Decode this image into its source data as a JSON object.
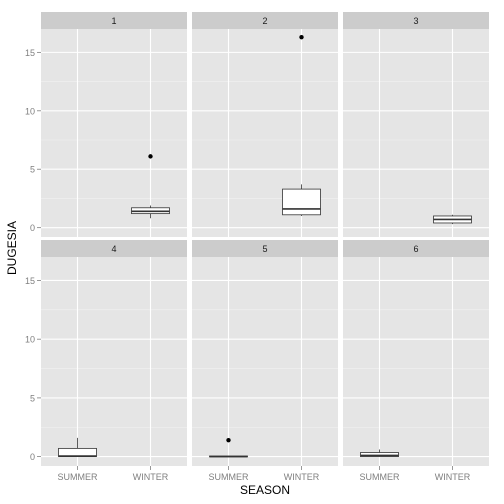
{
  "chart_data": {
    "type": "boxplot",
    "xlabel": "SEASON",
    "ylabel": "DUGESIA",
    "categories": [
      "SUMMER",
      "WINTER"
    ],
    "y_ticks": [
      0,
      5,
      10,
      15
    ],
    "ylim": [
      -0.8,
      17.0
    ],
    "grid": true,
    "facets": [
      {
        "label": "1",
        "boxes": [
          {
            "category": "WINTER",
            "whisker_low": 0.8,
            "q1": 1.2,
            "median": 1.4,
            "q3": 1.7,
            "whisker_high": 1.9,
            "outliers": [
              6.1
            ]
          }
        ]
      },
      {
        "label": "2",
        "boxes": [
          {
            "category": "WINTER",
            "whisker_low": 1.0,
            "q1": 1.1,
            "median": 1.6,
            "q3": 3.3,
            "whisker_high": 3.7,
            "outliers": [
              16.3
            ]
          }
        ]
      },
      {
        "label": "3",
        "boxes": [
          {
            "category": "WINTER",
            "whisker_low": 0.3,
            "q1": 0.4,
            "median": 0.7,
            "q3": 1.0,
            "whisker_high": 1.1,
            "outliers": []
          }
        ]
      },
      {
        "label": "4",
        "boxes": [
          {
            "category": "SUMMER",
            "whisker_low": 0.0,
            "q1": 0.0,
            "median": 0.05,
            "q3": 0.7,
            "whisker_high": 1.6,
            "outliers": []
          }
        ]
      },
      {
        "label": "5",
        "boxes": [
          {
            "category": "SUMMER",
            "whisker_low": 0.0,
            "q1": 0.0,
            "median": 0.0,
            "q3": 0.05,
            "whisker_high": 0.05,
            "outliers": [
              1.4
            ]
          }
        ]
      },
      {
        "label": "6",
        "boxes": [
          {
            "category": "SUMMER",
            "whisker_low": 0.0,
            "q1": 0.0,
            "median": 0.1,
            "q3": 0.35,
            "whisker_high": 0.6,
            "outliers": []
          }
        ]
      }
    ]
  },
  "colors": {
    "panel_bg": "#e5e5e5",
    "strip_bg": "#cccccc",
    "grid_major": "#ffffff",
    "grid_minor": "#f2f2f2",
    "box_fill": "#ffffff",
    "box_stroke": "#333333",
    "axis_text": "#7f7f7f",
    "title_text": "#000000"
  }
}
